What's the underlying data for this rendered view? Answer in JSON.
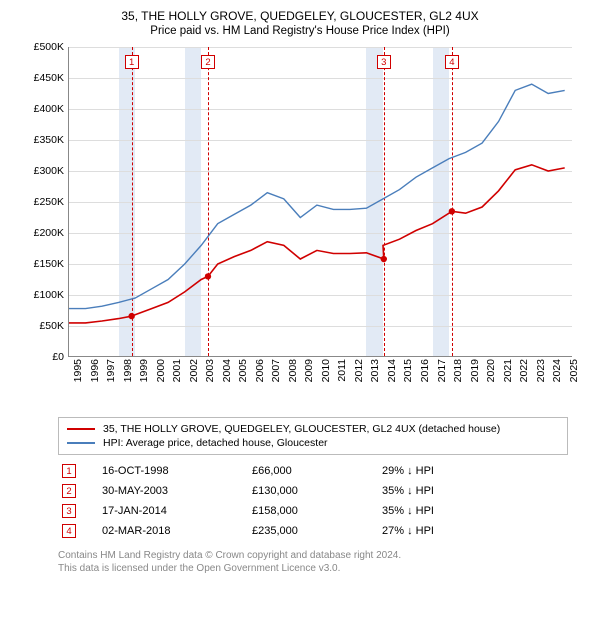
{
  "title": "35, THE HOLLY GROVE, QUEDGELEY, GLOUCESTER, GL2 4UX",
  "subtitle": "Price paid vs. HM Land Registry's House Price Index (HPI)",
  "chart": {
    "type": "line",
    "background_color": "#ffffff",
    "grid_color": "#dddddd",
    "axis_color": "#888888",
    "band_color": "#e2eaf5",
    "xlim": [
      1995,
      2025.5
    ],
    "ylim": [
      0,
      500000
    ],
    "ytick_step": 50000,
    "yticks": [
      "£0",
      "£50K",
      "£100K",
      "£150K",
      "£200K",
      "£250K",
      "£300K",
      "£350K",
      "£400K",
      "£450K",
      "£500K"
    ],
    "xticks": [
      1995,
      1996,
      1997,
      1998,
      1999,
      2000,
      2001,
      2002,
      2003,
      2004,
      2005,
      2006,
      2007,
      2008,
      2009,
      2010,
      2011,
      2012,
      2013,
      2014,
      2015,
      2016,
      2017,
      2018,
      2019,
      2020,
      2021,
      2022,
      2023,
      2024,
      2025
    ],
    "band_years": [
      [
        1998,
        1999
      ],
      [
        2002,
        2003
      ],
      [
        2013,
        2014
      ],
      [
        2017,
        2018
      ]
    ],
    "series": [
      {
        "name": "hpi",
        "label": "HPI: Average price, detached house, Gloucester",
        "color": "#4a7ebb",
        "width": 1.4,
        "points": [
          [
            1995,
            78000
          ],
          [
            1996,
            78000
          ],
          [
            1997,
            82000
          ],
          [
            1998,
            88000
          ],
          [
            1999,
            95000
          ],
          [
            2000,
            110000
          ],
          [
            2001,
            125000
          ],
          [
            2002,
            150000
          ],
          [
            2003,
            180000
          ],
          [
            2004,
            215000
          ],
          [
            2005,
            230000
          ],
          [
            2006,
            245000
          ],
          [
            2007,
            265000
          ],
          [
            2008,
            255000
          ],
          [
            2009,
            225000
          ],
          [
            2010,
            245000
          ],
          [
            2011,
            238000
          ],
          [
            2012,
            238000
          ],
          [
            2013,
            240000
          ],
          [
            2014,
            255000
          ],
          [
            2015,
            270000
          ],
          [
            2016,
            290000
          ],
          [
            2017,
            305000
          ],
          [
            2018,
            320000
          ],
          [
            2019,
            330000
          ],
          [
            2020,
            345000
          ],
          [
            2021,
            380000
          ],
          [
            2022,
            430000
          ],
          [
            2023,
            440000
          ],
          [
            2024,
            425000
          ],
          [
            2025,
            430000
          ]
        ]
      },
      {
        "name": "property",
        "label": "35, THE HOLLY GROVE, QUEDGELEY, GLOUCESTER, GL2 4UX (detached house)",
        "color": "#d00000",
        "width": 1.6,
        "points": [
          [
            1995,
            55000
          ],
          [
            1996,
            55000
          ],
          [
            1997,
            58000
          ],
          [
            1998,
            62000
          ],
          [
            1998.8,
            66000
          ],
          [
            1999,
            68000
          ],
          [
            2000,
            78000
          ],
          [
            2001,
            88000
          ],
          [
            2002,
            105000
          ],
          [
            2003,
            125000
          ],
          [
            2003.41,
            130000
          ],
          [
            2004,
            150000
          ],
          [
            2005,
            162000
          ],
          [
            2006,
            172000
          ],
          [
            2007,
            186000
          ],
          [
            2008,
            180000
          ],
          [
            2009,
            158000
          ],
          [
            2010,
            172000
          ],
          [
            2011,
            167000
          ],
          [
            2012,
            167000
          ],
          [
            2013,
            168000
          ],
          [
            2014.05,
            158000
          ],
          [
            2014,
            180000
          ],
          [
            2015,
            190000
          ],
          [
            2016,
            204000
          ],
          [
            2017,
            215000
          ],
          [
            2018.17,
            235000
          ],
          [
            2019,
            232000
          ],
          [
            2020,
            242000
          ],
          [
            2021,
            268000
          ],
          [
            2022,
            302000
          ],
          [
            2023,
            310000
          ],
          [
            2024,
            300000
          ],
          [
            2025,
            305000
          ]
        ]
      }
    ],
    "markers": [
      {
        "n": "1",
        "year": 1998.79,
        "value": 66000
      },
      {
        "n": "2",
        "year": 2003.41,
        "value": 130000
      },
      {
        "n": "3",
        "year": 2014.05,
        "value": 158000
      },
      {
        "n": "4",
        "year": 2018.17,
        "value": 235000
      }
    ]
  },
  "legend": {
    "items": [
      {
        "color": "#d00000",
        "label": "35, THE HOLLY GROVE, QUEDGELEY, GLOUCESTER, GL2 4UX (detached house)"
      },
      {
        "color": "#4a7ebb",
        "label": "HPI: Average price, detached house, Gloucester"
      }
    ]
  },
  "transactions": [
    {
      "n": "1",
      "date": "16-OCT-1998",
      "price": "£66,000",
      "delta": "29% ↓ HPI"
    },
    {
      "n": "2",
      "date": "30-MAY-2003",
      "price": "£130,000",
      "delta": "35% ↓ HPI"
    },
    {
      "n": "3",
      "date": "17-JAN-2014",
      "price": "£158,000",
      "delta": "35% ↓ HPI"
    },
    {
      "n": "4",
      "date": "02-MAR-2018",
      "price": "£235,000",
      "delta": "27% ↓ HPI"
    }
  ],
  "footer": {
    "line1": "Contains HM Land Registry data © Crown copyright and database right 2024.",
    "line2": "This data is licensed under the Open Government Licence v3.0."
  }
}
